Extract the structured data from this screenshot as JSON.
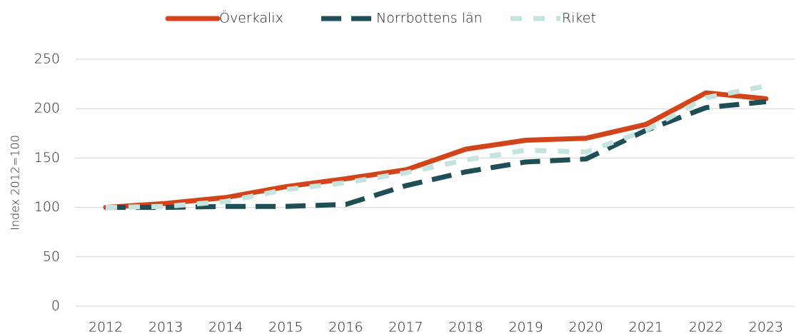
{
  "chart_data": {
    "type": "line",
    "y_label": "Index 2012=100",
    "categories": [
      "2012",
      "2013",
      "2014",
      "2015",
      "2016",
      "2017",
      "2018",
      "2019",
      "2020",
      "2021",
      "2022",
      "2023"
    ],
    "series": [
      {
        "name": "Överkalix",
        "color": "#d4441a",
        "dash": "solid",
        "values": [
          100,
          104,
          110,
          121,
          129,
          138,
          159,
          168,
          170,
          184,
          216,
          210
        ]
      },
      {
        "name": "Norrbottens län",
        "color": "#1f4f56",
        "dash": "long",
        "values": [
          100,
          100,
          101,
          101,
          103,
          122,
          136,
          146,
          149,
          178,
          201,
          207
        ]
      },
      {
        "name": "Riket",
        "color": "#c5e4df",
        "dash": "short",
        "values": [
          100,
          101,
          106,
          118,
          125,
          135,
          148,
          158,
          156,
          178,
          211,
          223
        ]
      }
    ],
    "ylim": [
      0,
      250
    ],
    "yticks": [
      0,
      50,
      100,
      150,
      200,
      250
    ],
    "grid": true,
    "legend": "top"
  }
}
